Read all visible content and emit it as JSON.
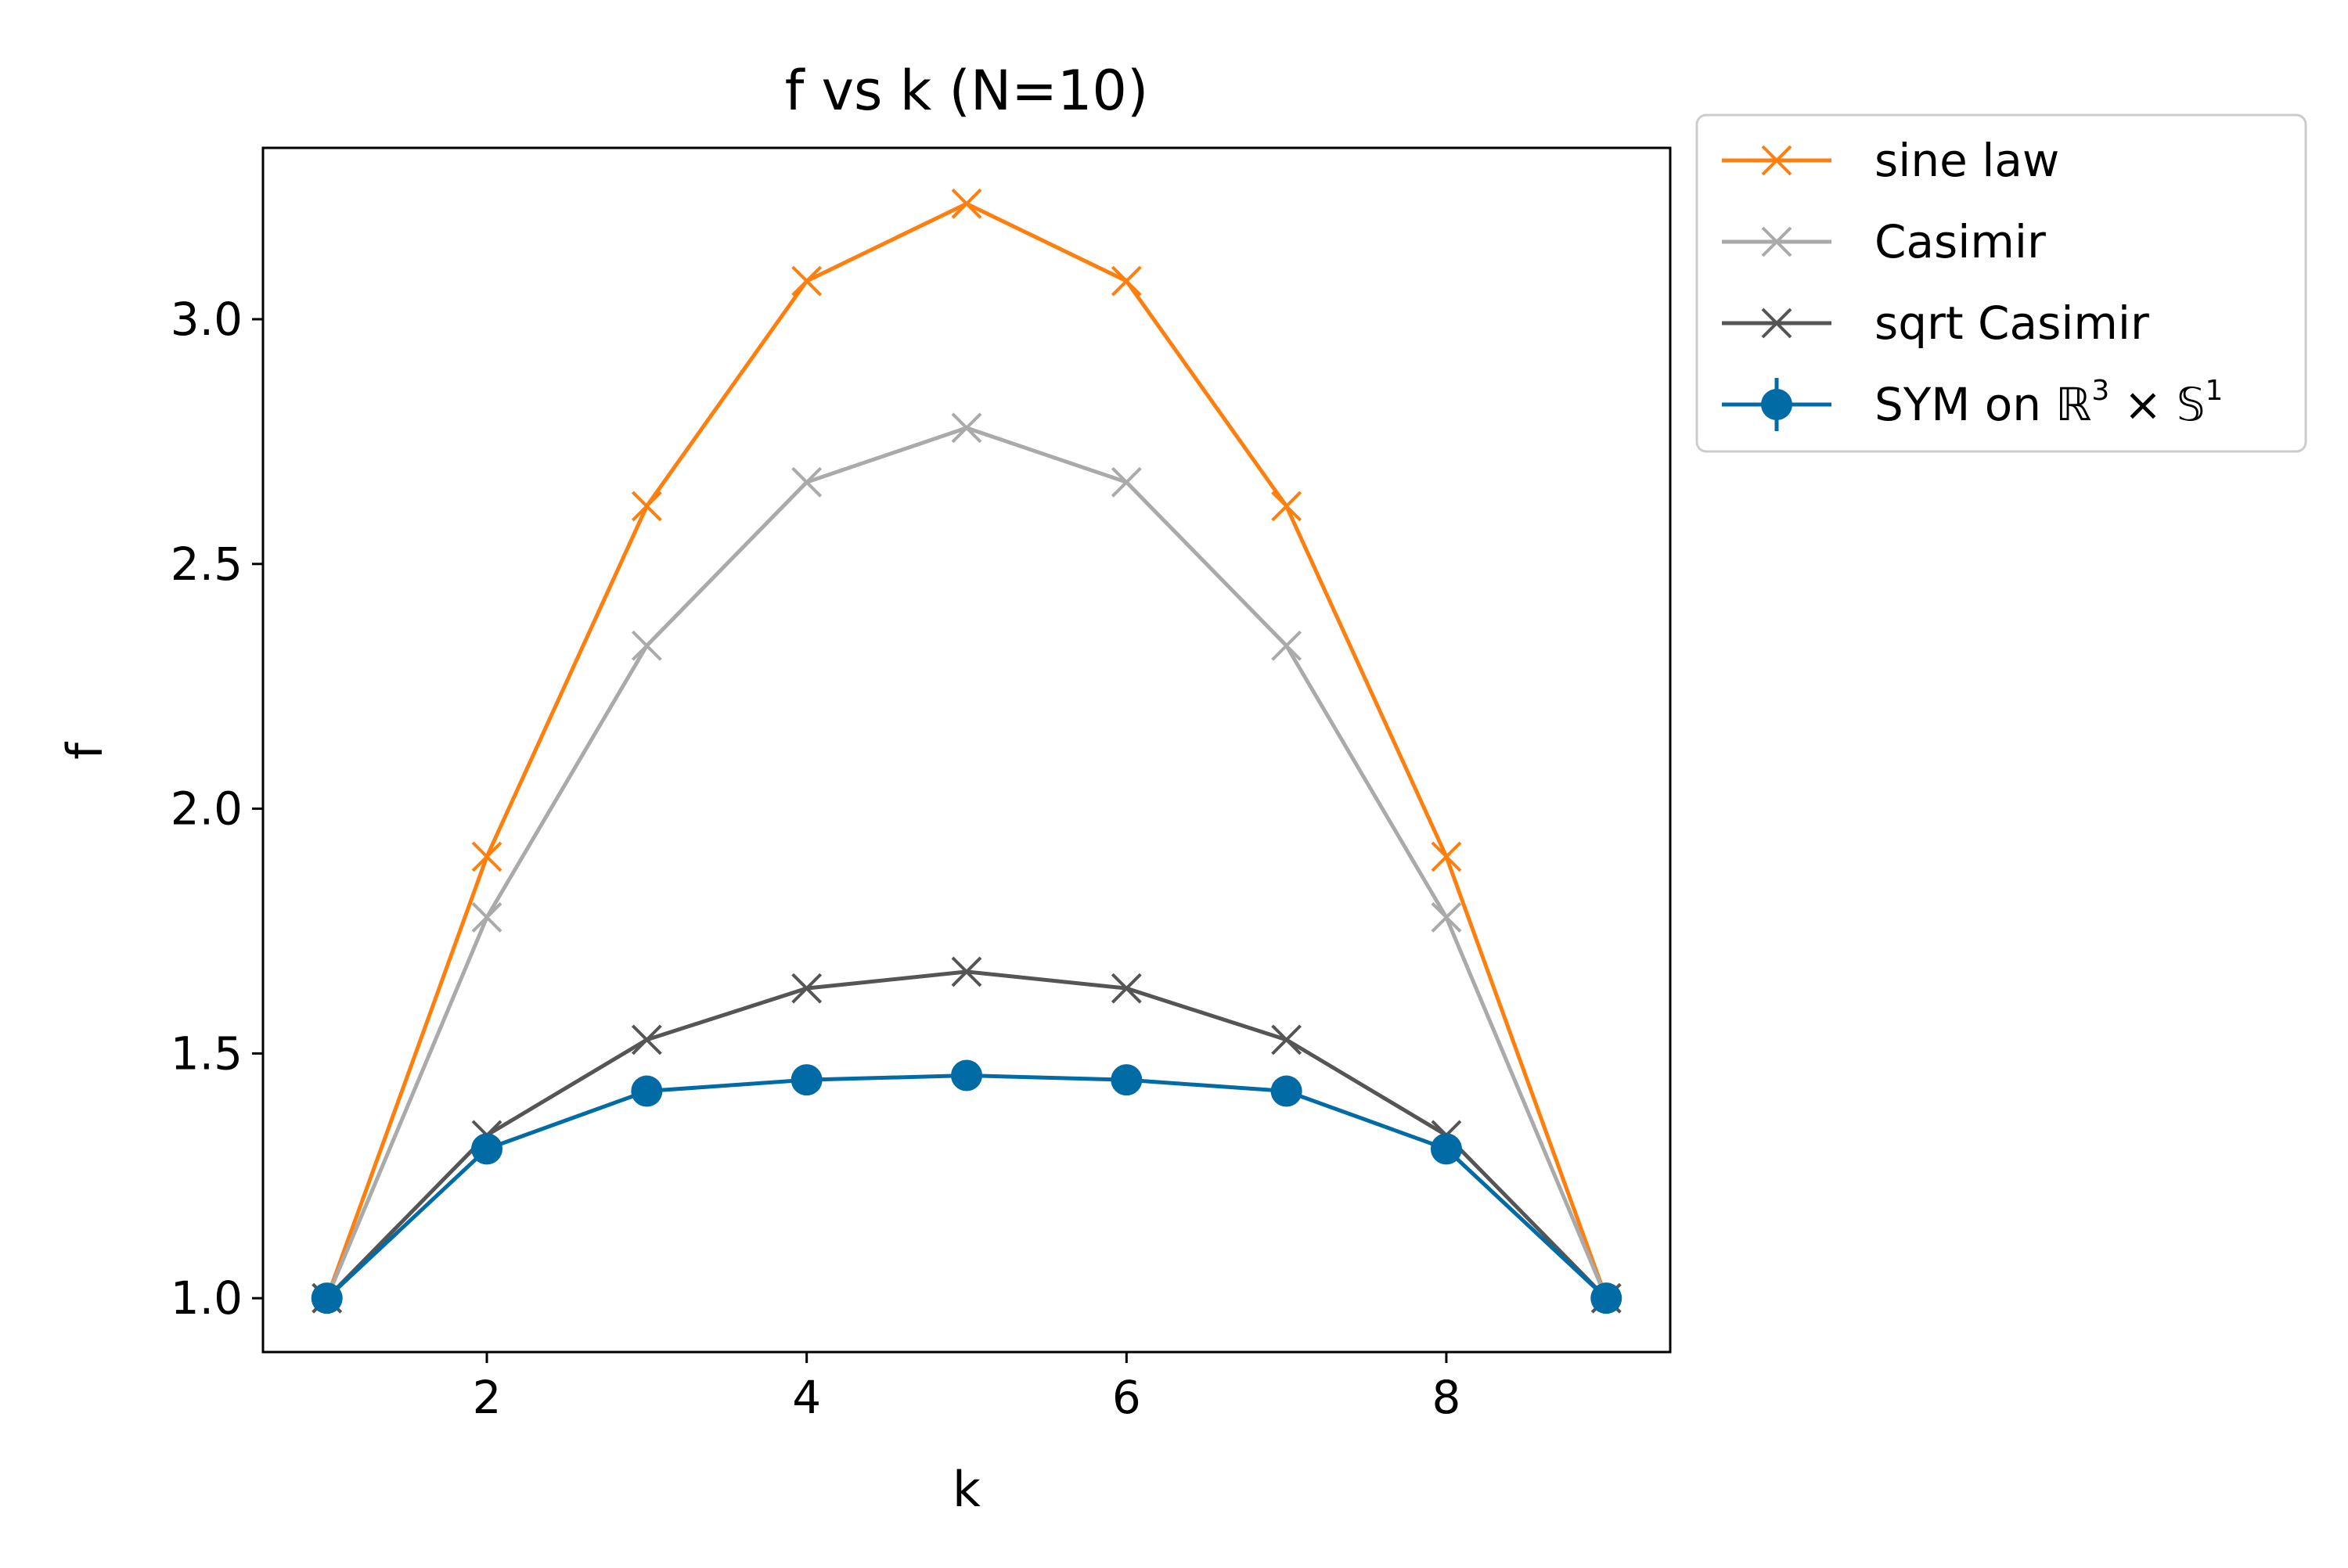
{
  "chart_data": {
    "type": "line",
    "title": "f vs k (N=10)",
    "xlabel": "k",
    "ylabel": "f",
    "xlim": [
      0.6,
      9.4
    ],
    "ylim": [
      0.89,
      3.35
    ],
    "xticks": [
      2,
      4,
      6,
      8
    ],
    "xtick_labels": [
      "2",
      "4",
      "6",
      "8"
    ],
    "yticks": [
      1.0,
      1.5,
      2.0,
      2.5,
      3.0
    ],
    "ytick_labels": [
      "1.0",
      "1.5",
      "2.0",
      "2.5",
      "3.0"
    ],
    "grid": false,
    "legend_placement": "outside-upper-right",
    "x": [
      1,
      2,
      3,
      4,
      5,
      6,
      7,
      8,
      9
    ],
    "series": [
      {
        "name": "sine law",
        "marker": "x",
        "color": "#ff7f0e",
        "values": [
          1.0,
          1.902,
          2.618,
          3.078,
          3.236,
          3.078,
          2.618,
          1.902,
          1.0
        ]
      },
      {
        "name": "Casimir",
        "marker": "x",
        "color": "#aaaaaa",
        "values": [
          1.0,
          1.778,
          2.333,
          2.667,
          2.778,
          2.667,
          2.333,
          1.778,
          1.0
        ]
      },
      {
        "name": "sqrt Casimir",
        "marker": "x",
        "color": "#555555",
        "values": [
          1.0,
          1.333,
          1.528,
          1.633,
          1.667,
          1.633,
          1.528,
          1.333,
          1.0
        ]
      },
      {
        "name": "SYM on ℝ³ × 𝕊¹",
        "name_parts": {
          "prefix": "SYM on ℝ",
          "exp1": "3",
          "middle": " × 𝕊",
          "exp2": "1"
        },
        "marker": "o",
        "errorbars": true,
        "color": "#006ba4",
        "values": [
          1.0,
          1.305,
          1.423,
          1.446,
          1.455,
          1.446,
          1.423,
          1.305,
          1.0
        ]
      }
    ]
  }
}
